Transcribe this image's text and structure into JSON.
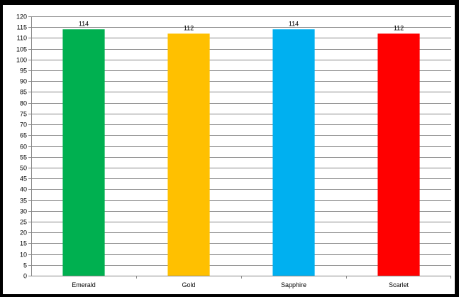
{
  "chart_data": {
    "type": "bar",
    "categories": [
      "Emerald",
      "Gold",
      "Sapphire",
      "Scarlet"
    ],
    "values": [
      114,
      112,
      114,
      112
    ],
    "data_labels": [
      "114",
      "112",
      "114",
      "112"
    ],
    "colors": [
      "#00b050",
      "#ffc000",
      "#00b0f0",
      "#ff0000"
    ],
    "title": "",
    "xlabel": "",
    "ylabel": "",
    "ylim": [
      0,
      120
    ],
    "ytick_step": 5,
    "grid": true,
    "legend": "none"
  }
}
